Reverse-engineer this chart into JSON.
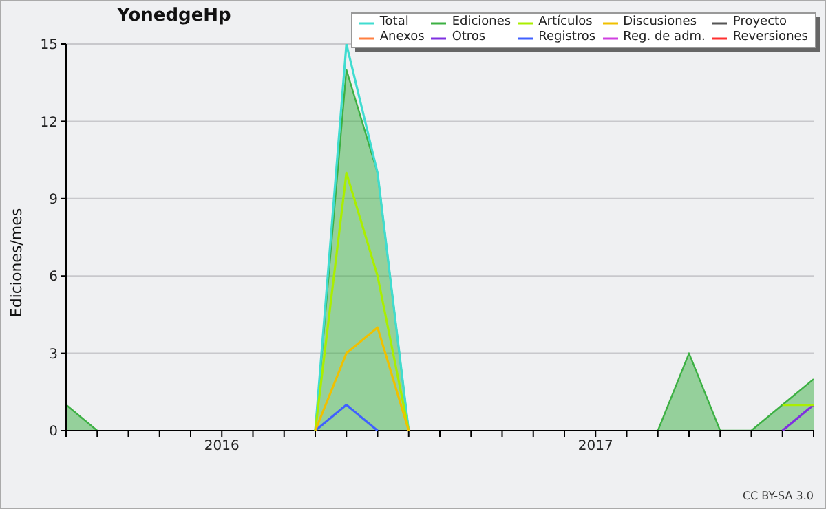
{
  "chart_data": {
    "type": "line",
    "title": "YonedgeHp",
    "ylabel": "Ediciones/mes",
    "annotations": [
      "CC BY-SA 3.0"
    ],
    "categories": [
      null,
      null,
      null,
      null,
      null,
      "2016",
      null,
      null,
      null,
      null,
      null,
      null,
      null,
      null,
      null,
      null,
      null,
      "2017",
      null,
      null,
      null,
      null,
      null,
      null,
      null
    ],
    "series": [
      {
        "name": "Total",
        "color": "#40dcd0",
        "values": [
          null,
          null,
          null,
          null,
          null,
          null,
          null,
          null,
          0,
          15,
          10,
          0,
          null,
          null,
          null,
          null,
          null,
          null,
          null,
          null,
          null,
          null,
          null,
          null,
          null
        ]
      },
      {
        "name": "Anexos",
        "color": "#ff7f40",
        "values": [
          null,
          null,
          null,
          null,
          null,
          null,
          null,
          null,
          null,
          null,
          null,
          null,
          null,
          null,
          null,
          null,
          null,
          null,
          null,
          null,
          null,
          null,
          null,
          null,
          null
        ]
      },
      {
        "name": "Ediciones",
        "type": "area",
        "color": "#3cb043",
        "values": [
          1,
          0,
          null,
          null,
          null,
          null,
          null,
          null,
          0,
          14,
          10,
          0,
          null,
          null,
          null,
          null,
          null,
          null,
          null,
          0,
          3,
          0,
          0,
          1,
          2
        ]
      },
      {
        "name": "Otros",
        "color": "#7f30e0",
        "values": [
          null,
          null,
          null,
          null,
          null,
          null,
          null,
          null,
          null,
          null,
          null,
          null,
          null,
          null,
          null,
          null,
          null,
          null,
          null,
          null,
          null,
          null,
          null,
          0,
          1
        ]
      },
      {
        "name": "Artículos",
        "color": "#aaee00",
        "values": [
          null,
          null,
          null,
          null,
          null,
          null,
          null,
          null,
          0,
          10,
          6,
          0,
          null,
          null,
          null,
          null,
          null,
          null,
          null,
          null,
          null,
          null,
          null,
          1,
          1
        ]
      },
      {
        "name": "Registros",
        "color": "#4060ff",
        "values": [
          null,
          null,
          null,
          null,
          null,
          null,
          null,
          null,
          0,
          1,
          0,
          null,
          null,
          null,
          null,
          null,
          null,
          null,
          null,
          null,
          null,
          null,
          null,
          null,
          null
        ]
      },
      {
        "name": "Discusiones",
        "color": "#f0c000",
        "values": [
          null,
          null,
          null,
          null,
          null,
          null,
          null,
          null,
          0,
          3,
          4,
          0,
          null,
          null,
          null,
          null,
          null,
          null,
          null,
          null,
          null,
          null,
          null,
          null,
          null
        ]
      },
      {
        "name": "Reg. de adm.",
        "color": "#d040e0",
        "values": [
          null,
          null,
          null,
          null,
          null,
          null,
          null,
          null,
          null,
          null,
          null,
          null,
          null,
          null,
          null,
          null,
          null,
          null,
          null,
          null,
          null,
          null,
          null,
          null,
          null
        ]
      },
      {
        "name": "Proyecto",
        "color": "#555555",
        "values": [
          null,
          null,
          null,
          null,
          null,
          null,
          null,
          null,
          null,
          null,
          null,
          null,
          null,
          null,
          null,
          null,
          null,
          null,
          null,
          null,
          null,
          null,
          null,
          null,
          null
        ]
      },
      {
        "name": "Reversiones",
        "color": "#ff3030",
        "values": [
          null,
          null,
          null,
          null,
          null,
          null,
          null,
          null,
          null,
          null,
          null,
          null,
          null,
          null,
          null,
          null,
          null,
          null,
          null,
          null,
          null,
          null,
          null,
          null,
          null
        ]
      }
    ],
    "ylim": [
      0,
      15
    ],
    "yticks": [
      0,
      3,
      6,
      9,
      12,
      15
    ],
    "grid": "y",
    "legend": "top right",
    "marker": "none",
    "line_style": "solid"
  }
}
